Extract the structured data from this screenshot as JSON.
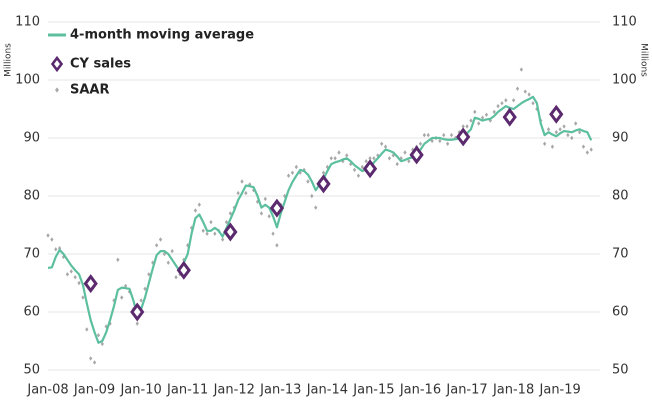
{
  "chart_data": {
    "type": "line",
    "y_label": "Millions",
    "y2_label": "Millions",
    "categories": [
      "Jan-08",
      null,
      null,
      null,
      null,
      null,
      null,
      null,
      null,
      null,
      null,
      null,
      "Jan-09",
      null,
      null,
      null,
      null,
      null,
      null,
      null,
      null,
      null,
      null,
      null,
      "Jan-10",
      null,
      null,
      null,
      null,
      null,
      null,
      null,
      null,
      null,
      null,
      null,
      "Jan-11",
      null,
      null,
      null,
      null,
      null,
      null,
      null,
      null,
      null,
      null,
      null,
      "Jan-12",
      null,
      null,
      null,
      null,
      null,
      null,
      null,
      null,
      null,
      null,
      null,
      "Jan-13",
      null,
      null,
      null,
      null,
      null,
      null,
      null,
      null,
      null,
      null,
      null,
      "Jan-14",
      null,
      null,
      null,
      null,
      null,
      null,
      null,
      null,
      null,
      null,
      null,
      "Jan-15",
      null,
      null,
      null,
      null,
      null,
      null,
      null,
      null,
      null,
      null,
      null,
      "Jan-16",
      null,
      null,
      null,
      null,
      null,
      null,
      null,
      null,
      null,
      null,
      null,
      "Jan-17",
      null,
      null,
      null,
      null,
      null,
      null,
      null,
      null,
      null,
      null,
      null,
      "Jan-18",
      null,
      null,
      null,
      null,
      null,
      null,
      null,
      null,
      null,
      null,
      null,
      "Jan-19",
      null,
      null,
      null,
      null,
      null,
      null,
      null,
      null
    ],
    "series": [
      {
        "name": "4-month moving average",
        "color": "#5cbf9f",
        "mark": "line",
        "values": [
          67.6,
          67.7,
          69.5,
          70.7,
          70.0,
          69.0,
          68.0,
          67.2,
          66.5,
          64.7,
          61.5,
          58.6,
          56.5,
          54.7,
          55.0,
          56.5,
          58.6,
          61.0,
          63.8,
          64.2,
          64.1,
          64.0,
          62.0,
          59.5,
          60.5,
          62.5,
          65.0,
          67.5,
          69.8,
          70.5,
          70.5,
          70.0,
          69.0,
          68.0,
          67.0,
          68.5,
          70.0,
          73.5,
          76.2,
          76.8,
          75.5,
          74.0,
          74.0,
          74.5,
          74.0,
          73.0,
          74.5,
          76.0,
          77.5,
          79.3,
          80.5,
          81.8,
          81.7,
          81.5,
          80.0,
          78.0,
          78.5,
          78.0,
          76.5,
          74.6,
          77.0,
          79.0,
          81.0,
          82.4,
          83.5,
          84.5,
          84.3,
          83.7,
          82.5,
          81.0,
          82.0,
          83.0,
          84.3,
          85.5,
          85.8,
          86.0,
          86.3,
          86.5,
          86.0,
          85.3,
          84.8,
          84.3,
          84.6,
          85.0,
          85.8,
          86.5,
          87.3,
          88.0,
          87.8,
          87.5,
          86.8,
          86.0,
          86.2,
          86.5,
          86.7,
          87.0,
          88.0,
          89.0,
          89.5,
          90.0,
          90.0,
          90.0,
          89.8,
          89.7,
          89.7,
          89.8,
          89.9,
          90.0,
          90.8,
          91.5,
          93.5,
          93.3,
          93.0,
          93.2,
          93.3,
          93.8,
          94.5,
          95.0,
          95.5,
          95.2,
          95.0,
          95.5,
          96.0,
          96.4,
          96.7,
          97.1,
          96.0,
          92.5,
          90.5,
          91.0,
          90.6,
          90.3,
          90.8,
          91.2,
          91.1,
          91.0,
          91.3,
          91.5,
          91.2,
          91.0,
          89.6
        ]
      },
      {
        "name": "CY sales",
        "color": "#5b2a6e",
        "mark": "diamond",
        "values": [
          null,
          null,
          null,
          null,
          null,
          null,
          null,
          null,
          null,
          null,
          null,
          64.9,
          null,
          null,
          null,
          null,
          null,
          null,
          null,
          null,
          null,
          null,
          null,
          60.0,
          null,
          null,
          null,
          null,
          null,
          null,
          null,
          null,
          null,
          null,
          null,
          67.2,
          null,
          null,
          null,
          null,
          null,
          null,
          null,
          null,
          null,
          null,
          null,
          73.8,
          null,
          null,
          null,
          null,
          null,
          null,
          null,
          null,
          null,
          null,
          null,
          77.9,
          null,
          null,
          null,
          null,
          null,
          null,
          null,
          null,
          null,
          null,
          null,
          82.1,
          null,
          null,
          null,
          null,
          null,
          null,
          null,
          null,
          null,
          null,
          null,
          84.7,
          null,
          null,
          null,
          null,
          null,
          null,
          null,
          null,
          null,
          null,
          null,
          87.1,
          null,
          null,
          null,
          null,
          null,
          null,
          null,
          null,
          null,
          null,
          null,
          90.2,
          null,
          null,
          null,
          null,
          null,
          null,
          null,
          null,
          null,
          null,
          null,
          93.6,
          null,
          null,
          null,
          null,
          null,
          null,
          null,
          null,
          null,
          null,
          null,
          94.1,
          null,
          null,
          null,
          null,
          null,
          null,
          null,
          null,
          null
        ]
      },
      {
        "name": "SAAR",
        "color": "#a8a8a8",
        "mark": "point",
        "values": [
          73.2,
          72.5,
          70.8,
          71.0,
          69.5,
          66.5,
          67.0,
          66.0,
          65.0,
          62.5,
          57.0,
          52.0,
          51.3,
          56.0,
          54.5,
          57.5,
          58.0,
          62.0,
          69.0,
          62.5,
          64.5,
          63.5,
          60.5,
          58.0,
          62.0,
          64.0,
          66.5,
          68.5,
          71.5,
          72.5,
          70.0,
          68.5,
          70.5,
          66.0,
          66.5,
          69.0,
          71.5,
          74.5,
          77.5,
          78.5,
          74.0,
          73.5,
          75.5,
          73.5,
          74.0,
          72.5,
          75.5,
          77.0,
          78.0,
          80.5,
          82.5,
          80.5,
          82.0,
          81.0,
          79.0,
          77.0,
          79.5,
          76.5,
          73.5,
          71.5,
          78.5,
          80.0,
          83.5,
          84.0,
          85.0,
          84.0,
          84.5,
          82.5,
          80.0,
          78.0,
          82.5,
          84.0,
          85.0,
          86.5,
          86.5,
          87.5,
          86.0,
          87.0,
          85.5,
          84.5,
          83.5,
          85.0,
          86.0,
          86.5,
          86.5,
          87.0,
          89.0,
          88.5,
          86.5,
          87.0,
          85.5,
          86.5,
          87.5,
          86.0,
          88.0,
          88.5,
          89.0,
          90.5,
          90.5,
          89.5,
          90.0,
          89.5,
          90.5,
          89.0,
          90.5,
          90.0,
          91.0,
          92.0,
          92.0,
          93.0,
          94.5,
          92.5,
          93.5,
          94.0,
          93.0,
          94.5,
          95.5,
          96.0,
          96.5,
          95.0,
          96.5,
          98.5,
          101.8,
          98.0,
          97.5,
          96.0,
          95.0,
          93.0,
          89.0,
          91.5,
          88.5,
          91.0,
          91.5,
          92.0,
          90.5,
          90.0,
          92.5,
          91.0,
          88.5,
          87.5,
          88.0
        ]
      }
    ],
    "ylim": [
      50,
      110
    ],
    "yticks": [
      50,
      60,
      70,
      80,
      90,
      100,
      110
    ],
    "y2lim": [
      50,
      110
    ],
    "y2ticks": [
      50,
      60,
      70,
      80,
      90,
      100,
      110
    ],
    "grid": true,
    "legend": "top-left"
  }
}
